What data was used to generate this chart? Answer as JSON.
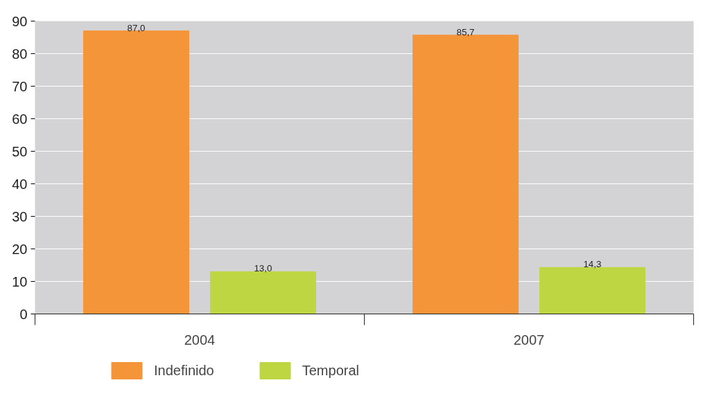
{
  "chart_data": {
    "type": "bar",
    "categories": [
      "2004",
      "2007"
    ],
    "series": [
      {
        "name": "Indefinido",
        "color": "#f5953a",
        "values": [
          87.0,
          85.7
        ],
        "value_labels": [
          "87,0",
          "85,7"
        ]
      },
      {
        "name": "Temporal",
        "color": "#bdd642",
        "values": [
          13.0,
          14.3
        ],
        "value_labels": [
          "13,0",
          "14,3"
        ]
      }
    ],
    "ylim": [
      0,
      90
    ],
    "yticks": [
      0,
      10,
      20,
      30,
      40,
      50,
      60,
      70,
      80,
      90
    ],
    "grid": "y",
    "legend": "bottom"
  }
}
